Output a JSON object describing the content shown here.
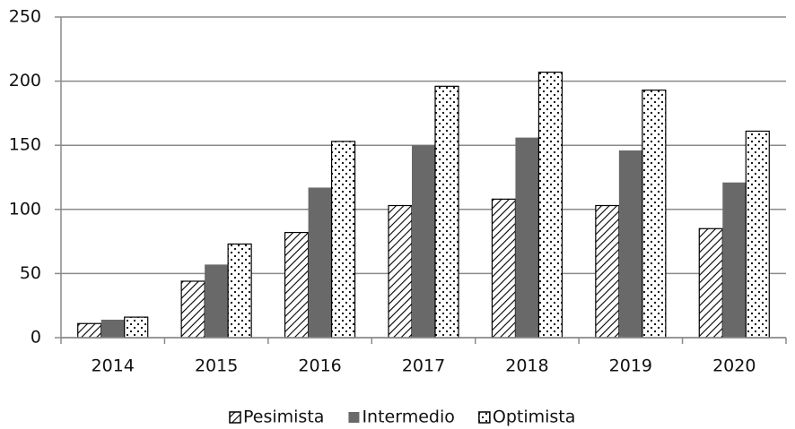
{
  "chart_data": {
    "type": "bar",
    "categories": [
      "2014",
      "2015",
      "2016",
      "2017",
      "2018",
      "2019",
      "2020"
    ],
    "series": [
      {
        "name": "Pesimista",
        "color": "#000000",
        "pattern": "hatch",
        "values": [
          11,
          44,
          82,
          103,
          108,
          103,
          85
        ]
      },
      {
        "name": "Intermedio",
        "color": "#696969",
        "pattern": "solid",
        "values": [
          14,
          57,
          117,
          150,
          156,
          146,
          121
        ]
      },
      {
        "name": "Optimista",
        "color": "#000000",
        "pattern": "dots",
        "values": [
          16,
          73,
          153,
          196,
          207,
          193,
          161
        ]
      }
    ],
    "ylim": [
      0,
      250
    ],
    "yticks": [
      0,
      50,
      100,
      150,
      200,
      250
    ],
    "grid": true,
    "legend": "bottom"
  }
}
